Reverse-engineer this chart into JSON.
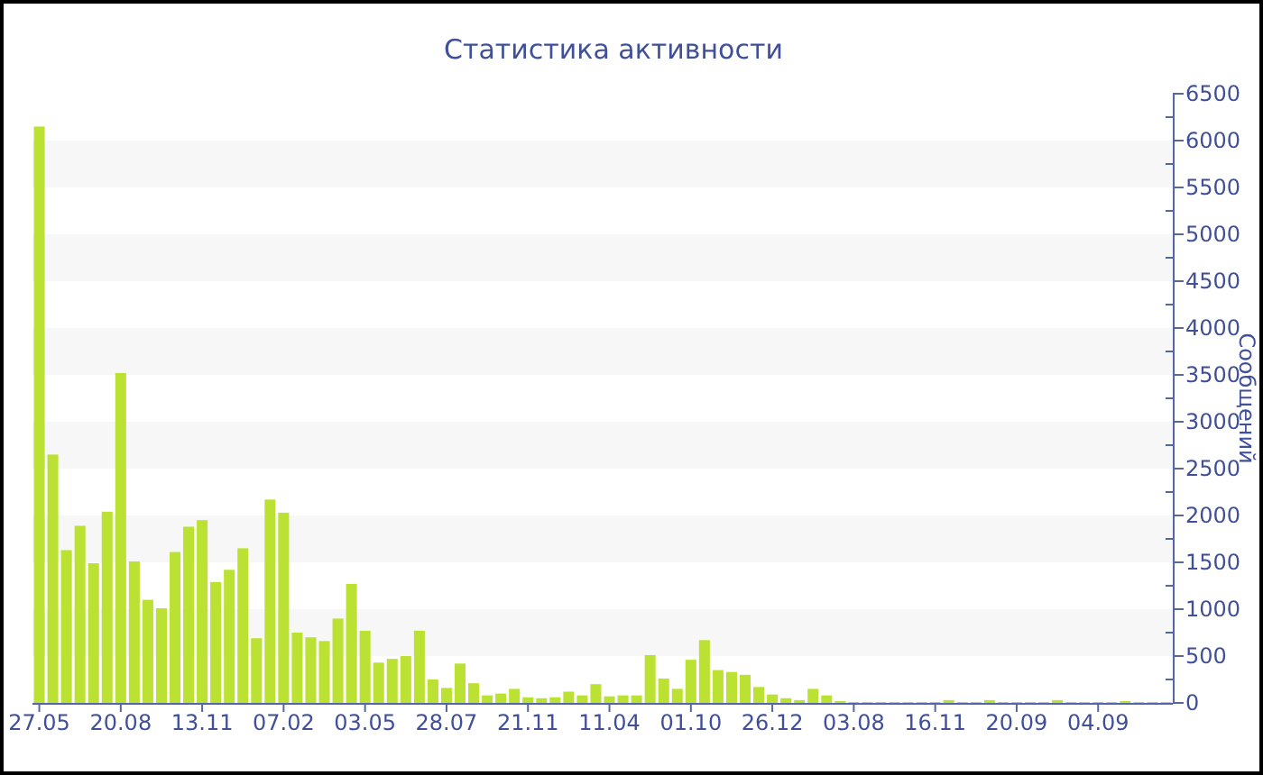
{
  "chart_data": {
    "type": "bar",
    "title": "Статистика активности",
    "ylabel": "Сообщений",
    "categories": [
      "27.05",
      null,
      null,
      null,
      null,
      null,
      "20.08",
      null,
      null,
      null,
      null,
      null,
      "13.11",
      null,
      null,
      null,
      null,
      null,
      "07.02",
      null,
      null,
      null,
      null,
      null,
      "03.05",
      null,
      null,
      null,
      null,
      null,
      "28.07",
      null,
      null,
      null,
      null,
      null,
      "21.11",
      null,
      null,
      null,
      null,
      null,
      "11.04",
      null,
      null,
      null,
      null,
      null,
      "01.10",
      null,
      null,
      null,
      null,
      null,
      "26.12",
      null,
      null,
      null,
      null,
      null,
      "03.08",
      null,
      null,
      null,
      null,
      null,
      "16.11",
      null,
      null,
      null,
      null,
      null,
      "20.09",
      null,
      null,
      null,
      null,
      null,
      "04.09",
      null,
      null,
      null,
      null,
      null
    ],
    "values": [
      6150,
      2650,
      1630,
      1890,
      1490,
      2040,
      3520,
      1510,
      1100,
      1010,
      1610,
      1880,
      1950,
      1290,
      1420,
      1650,
      690,
      2170,
      2030,
      750,
      700,
      660,
      900,
      1270,
      770,
      430,
      470,
      500,
      770,
      250,
      160,
      420,
      210,
      80,
      100,
      150,
      60,
      50,
      60,
      120,
      80,
      200,
      70,
      80,
      80,
      510,
      260,
      150,
      460,
      670,
      350,
      330,
      300,
      170,
      90,
      50,
      30,
      150,
      80,
      20,
      10,
      10,
      10,
      10,
      10,
      10,
      10,
      30,
      10,
      10,
      30,
      10,
      10,
      10,
      10,
      30,
      10,
      10,
      10,
      10,
      20,
      10,
      10,
      10
    ],
    "color": "#bbe133",
    "ylim": [
      0,
      6500
    ],
    "yticks": [
      0,
      {
        "value": 250,
        "label": null
      },
      500,
      {
        "value": 750,
        "label": null
      },
      1000,
      {
        "value": 1250,
        "label": null
      },
      1500,
      {
        "value": 1750,
        "label": null
      },
      2000,
      {
        "value": 2250,
        "label": null
      },
      2500,
      {
        "value": 2750,
        "label": null
      },
      3000,
      {
        "value": 3250,
        "label": null
      },
      3500,
      {
        "value": 3750,
        "label": null
      },
      4000,
      {
        "value": 4250,
        "label": null
      },
      4500,
      {
        "value": 4750,
        "label": null
      },
      5000,
      {
        "value": 5250,
        "label": null
      },
      5500,
      {
        "value": 5750,
        "label": null
      },
      6000,
      {
        "value": 6250,
        "label": null
      },
      6500
    ],
    "bands": [
      {
        "axis": "y",
        "from": 500,
        "to": 1000,
        "color": "#f7f7f7"
      },
      {
        "axis": "y",
        "from": 1500,
        "to": 2000,
        "color": "#f7f7f7"
      },
      {
        "axis": "y",
        "from": 2500,
        "to": 3000,
        "color": "#f7f7f7"
      },
      {
        "axis": "y",
        "from": 3500,
        "to": 4000,
        "color": "#f7f7f7"
      },
      {
        "axis": "y",
        "from": 4500,
        "to": 5000,
        "color": "#f7f7f7"
      },
      {
        "axis": "y",
        "from": 5500,
        "to": 6000,
        "color": "#f7f7f7"
      }
    ]
  }
}
